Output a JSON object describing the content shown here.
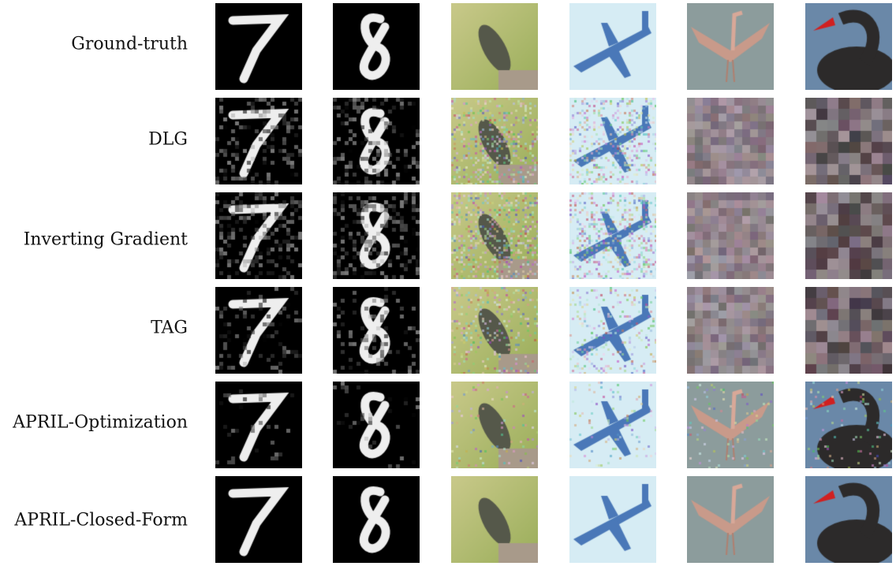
{
  "figure": {
    "rows": [
      {
        "label": "Ground-truth"
      },
      {
        "label": "DLG"
      },
      {
        "label": "Inverting Gradient"
      },
      {
        "label": "TAG"
      },
      {
        "label": "APRIL-Optimization"
      },
      {
        "label": "APRIL-Closed-Form"
      }
    ],
    "columns": [
      "digit-7",
      "digit-8",
      "bird",
      "airplane",
      "flamingo",
      "black-swan"
    ]
  }
}
